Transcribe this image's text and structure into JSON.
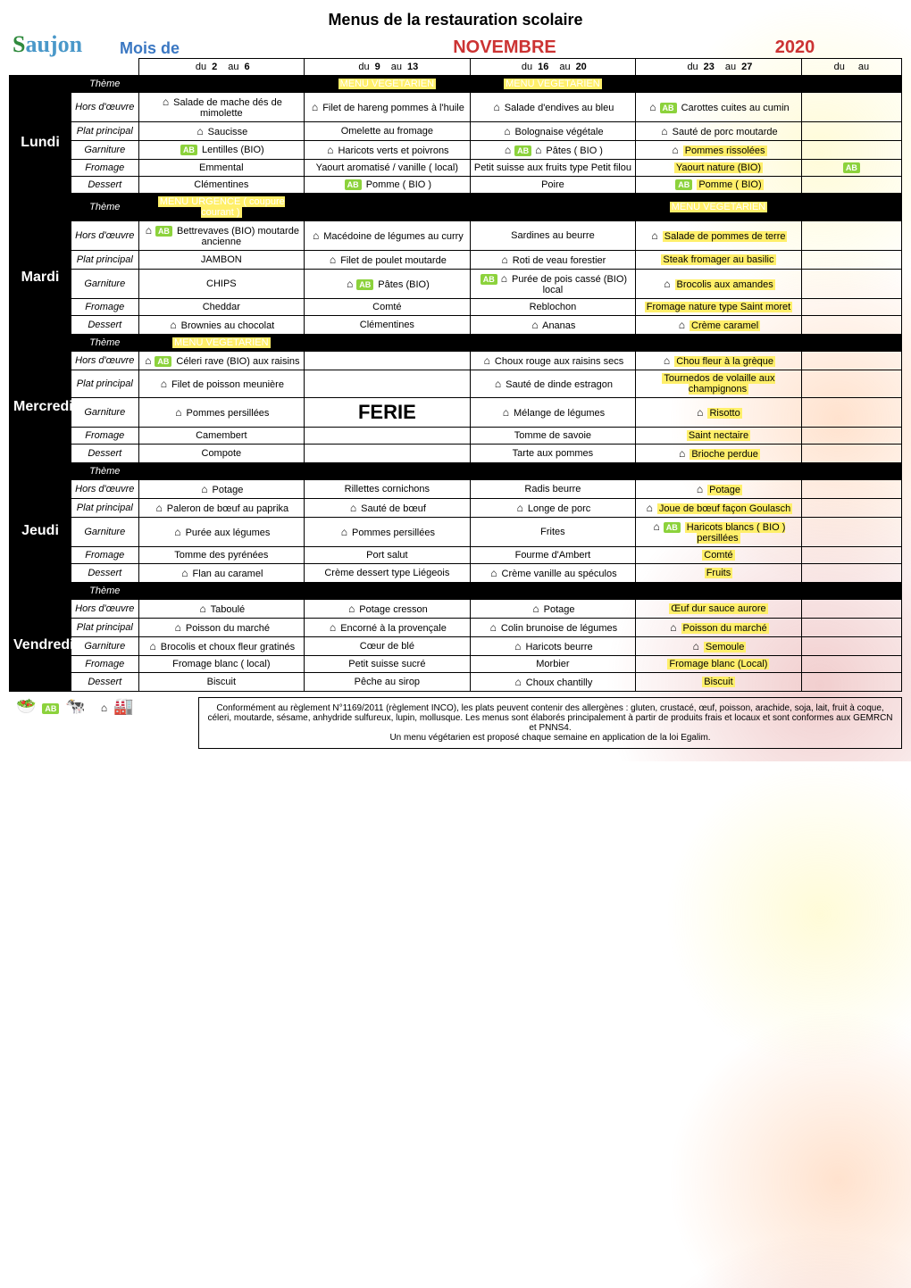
{
  "title": "Menus de la restauration scolaire",
  "brand": "Saujon",
  "mois_label": "Mois de",
  "month": "NOVEMBRE",
  "year": "2020",
  "date_labels": {
    "du": "du",
    "au": "au"
  },
  "weeks": [
    {
      "du": "2",
      "au": "6"
    },
    {
      "du": "9",
      "au": "13"
    },
    {
      "du": "16",
      "au": "20"
    },
    {
      "du": "23",
      "au": "27"
    },
    {
      "du": "",
      "au": ""
    }
  ],
  "row_labels": {
    "theme": "Thème",
    "hors": "Hors d'œuvre",
    "plat": "Plat principal",
    "garn": "Garniture",
    "from": "Fromage",
    "dess": "Dessert"
  },
  "days": [
    "Lundi",
    "Mardi",
    "Mercredi",
    "Jeudi",
    "Vendredi"
  ],
  "lundi": {
    "theme": [
      "",
      "MENU VEGETARIEN",
      "MENU VEGETARIEN",
      "",
      ""
    ],
    "hors": [
      "Salade de mache dés de mimolette",
      "Filet de hareng pommes à l'huile",
      "Salade d'endives au bleu",
      "Carottes cuites au cumin",
      ""
    ],
    "plat": [
      "Saucisse",
      "Omelette au fromage",
      "Bolognaise végétale",
      "Sauté de porc moutarde",
      ""
    ],
    "garn": [
      "Lentilles (BIO)",
      "Haricots verts et poivrons",
      "Pâtes ( BIO )",
      "Pommes rissolées",
      ""
    ],
    "from": [
      "Emmental",
      "Yaourt aromatisé / vanille ( local)",
      "Petit suisse aux fruits type Petit filou",
      "Yaourt nature (BIO)",
      ""
    ],
    "dess": [
      "Clémentines",
      "Pomme ( BIO )",
      "Poire",
      "Pomme ( BIO)",
      ""
    ]
  },
  "mardi": {
    "theme": [
      "MENU URGENCE ( coupure courant )",
      "",
      "",
      "MENU VEGETARIEN",
      ""
    ],
    "hors": [
      "Bettrevaves (BIO) moutarde ancienne",
      "Macédoine de légumes au curry",
      "Sardines au beurre",
      "Salade de pommes de terre",
      ""
    ],
    "plat": [
      "JAMBON",
      "Filet de poulet moutarde",
      "Roti de veau forestier",
      "Steak fromager au basilic",
      ""
    ],
    "garn": [
      "CHIPS",
      "Pâtes (BIO)",
      "Purée de pois cassé (BIO) local",
      "Brocolis aux amandes",
      ""
    ],
    "from": [
      "Cheddar",
      "Comté",
      "Reblochon",
      "Fromage nature type Saint moret",
      ""
    ],
    "dess": [
      "Brownies au chocolat",
      "Clémentines",
      "Ananas",
      "Crème caramel",
      ""
    ]
  },
  "mercredi": {
    "theme": [
      "MENU VEGETARIEN",
      "",
      "",
      "",
      ""
    ],
    "hors": [
      "Céleri rave (BIO) aux raisins",
      "",
      "Choux rouge aux raisins secs",
      "Chou fleur à la grèque",
      ""
    ],
    "plat": [
      "Filet de poisson meunière",
      "",
      "Sauté de dinde estragon",
      "Tournedos de volaille aux champignons",
      ""
    ],
    "garn": [
      "Pommes persillées",
      "FERIE",
      "Mélange de légumes",
      "Risotto",
      ""
    ],
    "from": [
      "Camembert",
      "",
      "Tomme de savoie",
      "Saint nectaire",
      ""
    ],
    "dess": [
      "Compote",
      "",
      "Tarte aux pommes",
      "Brioche perdue",
      ""
    ]
  },
  "jeudi": {
    "theme": [
      "",
      "",
      "",
      "",
      ""
    ],
    "hors": [
      "Potage",
      "Rillettes cornichons",
      "Radis beurre",
      "Potage",
      ""
    ],
    "plat": [
      "Paleron de bœuf au paprika",
      "Sauté de bœuf",
      "Longe de porc",
      "Joue de bœuf façon Goulasch",
      ""
    ],
    "garn": [
      "Purée aux légumes",
      "Pommes persillées",
      "Frites",
      "Haricots blancs ( BIO ) persillées",
      ""
    ],
    "from": [
      "Tomme des pyrénées",
      "Port salut",
      "Fourme d'Ambert",
      "Comté",
      ""
    ],
    "dess": [
      "Flan au caramel",
      "Crème dessert type Liégeois",
      "Crème vanille au spéculos",
      "Fruits",
      ""
    ]
  },
  "vendredi": {
    "theme": [
      "",
      "",
      "",
      "",
      ""
    ],
    "hors": [
      "Taboulé",
      "Potage cresson",
      "Potage",
      "Œuf dur sauce aurore",
      ""
    ],
    "plat": [
      "Poisson du marché",
      "Encorné à la provençale",
      "Colin brunoise de légumes",
      "Poisson du marché",
      ""
    ],
    "garn": [
      "Brocolis et choux fleur gratinés",
      "Cœur de blé",
      "Haricots beurre",
      "Semoule",
      ""
    ],
    "from": [
      "Fromage blanc ( local)",
      "Petit suisse sucré",
      "Morbier",
      "Fromage blanc (Local)",
      ""
    ],
    "dess": [
      "Biscuit",
      "Pêche au sirop",
      "Choux chantilly",
      "Biscuit",
      ""
    ]
  },
  "highlight": {
    "lundi": {
      "theme": [
        1,
        2
      ],
      "garn": [
        3
      ],
      "from": [
        3
      ],
      "dess": [
        3
      ]
    },
    "mardi": {
      "theme": [
        0,
        3
      ],
      "hors": [
        3
      ],
      "plat": [
        3
      ],
      "garn": [
        3
      ],
      "from": [
        3
      ],
      "dess": [
        3
      ]
    },
    "mercredi": {
      "theme": [
        0
      ],
      "hors": [
        3
      ],
      "plat": [
        3
      ],
      "garn": [
        3
      ],
      "from": [
        3
      ],
      "dess": [
        3
      ]
    },
    "jeudi": {
      "hors": [
        3
      ],
      "plat": [
        3
      ],
      "garn": [
        3
      ],
      "from": [
        3
      ],
      "dess": [
        3
      ]
    },
    "vendredi": {
      "hors": [
        3
      ],
      "plat": [
        3
      ],
      "garn": [
        3
      ],
      "from": [
        3
      ],
      "dess": [
        3
      ]
    }
  },
  "icons": {
    "lundi": {
      "hors": [
        "h",
        "h",
        "h",
        "h a",
        ""
      ],
      "plat": [
        "h",
        "",
        "h",
        "h",
        ""
      ],
      "garn": [
        "a",
        "h",
        "h a h",
        "h",
        ""
      ],
      "from": [
        "",
        "",
        "",
        "",
        "a"
      ],
      "dess": [
        "",
        "a",
        "",
        "a",
        ""
      ]
    },
    "mardi": {
      "hors": [
        "h a",
        "h",
        "",
        "h",
        ""
      ],
      "plat": [
        "",
        "h",
        "h",
        "",
        ""
      ],
      "garn": [
        "",
        "h a",
        "a h",
        "h",
        ""
      ],
      "from": [
        "",
        "",
        "",
        "",
        ""
      ],
      "dess": [
        "h",
        "",
        "h",
        "h",
        ""
      ]
    },
    "mercredi": {
      "hors": [
        "h a",
        "",
        "h",
        "h",
        ""
      ],
      "plat": [
        "h",
        "",
        "h",
        "",
        ""
      ],
      "garn": [
        "h",
        "",
        "h",
        "h",
        ""
      ],
      "from": [
        "",
        "",
        "",
        "",
        ""
      ],
      "dess": [
        "",
        "",
        "",
        "h",
        ""
      ]
    },
    "jeudi": {
      "hors": [
        "h",
        "",
        "",
        "h",
        ""
      ],
      "plat": [
        "h",
        "h",
        "h",
        "h",
        ""
      ],
      "garn": [
        "h",
        "h",
        "",
        "h a",
        ""
      ],
      "from": [
        "",
        "",
        "",
        "",
        ""
      ],
      "dess": [
        "h",
        "",
        "h",
        "",
        ""
      ]
    },
    "vendredi": {
      "hors": [
        "h",
        "h",
        "h",
        "",
        ""
      ],
      "plat": [
        "h",
        "h",
        "h",
        "h",
        ""
      ],
      "garn": [
        "h",
        "",
        "h",
        "h",
        ""
      ],
      "from": [
        "",
        "",
        "",
        "",
        ""
      ],
      "dess": [
        "",
        "",
        "h",
        "",
        ""
      ]
    }
  },
  "footer": "Conformément au règlement N°1169/2011 (règlement INCO), les plats peuvent contenir des allergènes : gluten, crustacé, œuf, poisson, arachide, soja, lait, fruit à coque, céleri, moutarde, sésame, anhydride sulfureux, lupin, mollusque. Les menus sont élaborés principalement à partir de produits frais et locaux et sont conformes aux GEMRCN et PNNS4.\nUn menu végétarien est proposé chaque semaine en application de la loi Egalim."
}
